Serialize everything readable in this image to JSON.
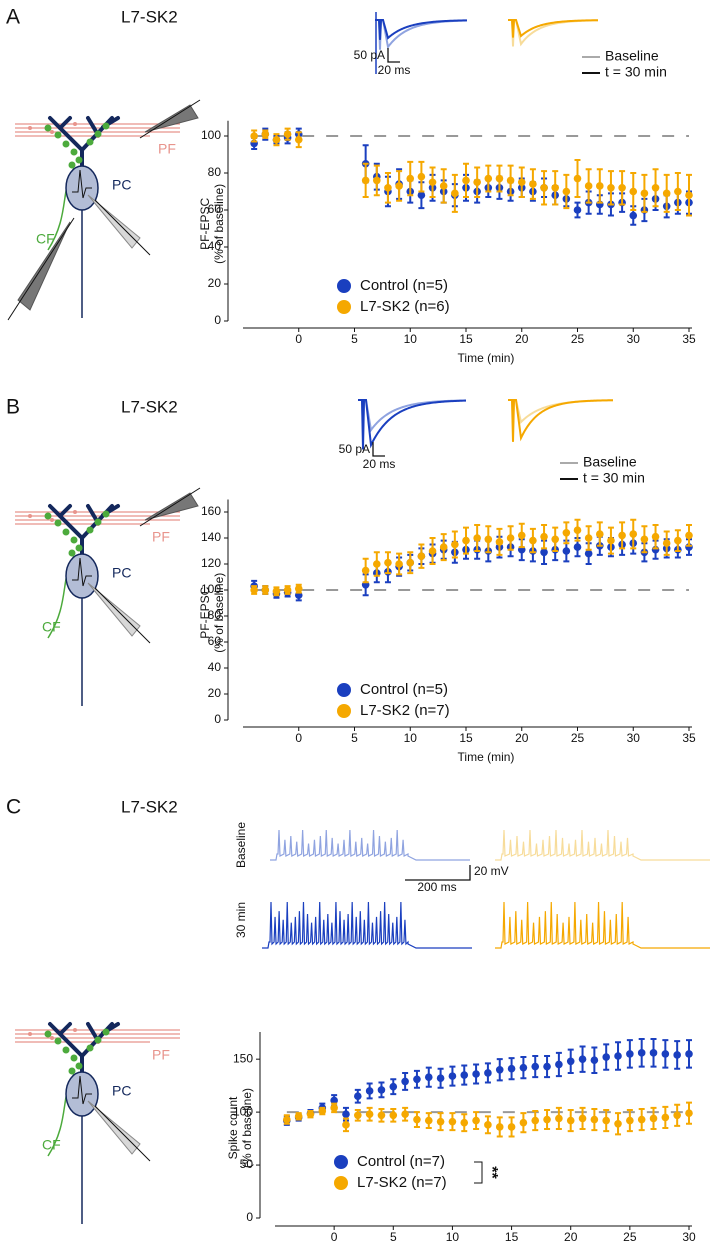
{
  "chart_data": [
    {
      "type": "scatter",
      "panel_label": "A",
      "title": "L7-SK2",
      "schematic_labels": [
        "PF",
        "PC",
        "CF"
      ],
      "scale_bars": [
        "50 pA",
        "20 ms"
      ],
      "trace_legend": [
        "Baseline",
        "t = 30 min"
      ],
      "xlabel": "Time (min)",
      "ylabel": "PF-EPSC",
      "ylabel2": "(% of baseline)",
      "reference_line": 100,
      "x": [
        -4,
        -3,
        -2,
        -1,
        0,
        6,
        7,
        8,
        9,
        10,
        11,
        12,
        13,
        14,
        15,
        16,
        17,
        18,
        19,
        20,
        21,
        22,
        23,
        24,
        25,
        26,
        27,
        28,
        29,
        30,
        31,
        32,
        33,
        34,
        35
      ],
      "series": [
        {
          "name": "Control (n=5)",
          "color": "#1a3fbf",
          "values": [
            96,
            101,
            98,
            99,
            101,
            85,
            78,
            70,
            74,
            70,
            68,
            72,
            70,
            68,
            72,
            70,
            72,
            72,
            70,
            72,
            70,
            72,
            68,
            66,
            60,
            64,
            63,
            63,
            64,
            57,
            60,
            66,
            62,
            64,
            64
          ],
          "errors": [
            3,
            3,
            2,
            3,
            3,
            10,
            7,
            8,
            8,
            6,
            7,
            7,
            6,
            6,
            7,
            6,
            5,
            6,
            5,
            5,
            5,
            5,
            5,
            4,
            4,
            6,
            5,
            6,
            5,
            5,
            6,
            6,
            6,
            6,
            6
          ]
        },
        {
          "name": "L7-SK2 (n=6)",
          "color": "#f5a800",
          "values": [
            100,
            101,
            98,
            101,
            98,
            76,
            76,
            72,
            73,
            77,
            78,
            75,
            73,
            69,
            76,
            75,
            77,
            77,
            76,
            75,
            74,
            72,
            72,
            70,
            77,
            73,
            73,
            72,
            72,
            70,
            69,
            72,
            69,
            70,
            68
          ],
          "errors": [
            3,
            2,
            3,
            3,
            4,
            9,
            8,
            8,
            8,
            9,
            8,
            8,
            9,
            10,
            9,
            8,
            7,
            7,
            8,
            8,
            8,
            9,
            9,
            9,
            10,
            9,
            9,
            9,
            9,
            10,
            10,
            10,
            10,
            10,
            11
          ]
        }
      ],
      "xlim": [
        -5,
        35
      ],
      "ylim": [
        0,
        105
      ],
      "xticks": [
        0,
        5,
        10,
        15,
        20,
        25,
        30,
        35
      ],
      "yticks": [
        0,
        20,
        40,
        60,
        80,
        100
      ]
    },
    {
      "type": "scatter",
      "panel_label": "B",
      "title": "L7-SK2",
      "schematic_labels": [
        "PF",
        "PC",
        "CF"
      ],
      "scale_bars": [
        "50 pA",
        "20 ms"
      ],
      "trace_legend": [
        "Baseline",
        "t = 30 min"
      ],
      "xlabel": "Time (min)",
      "ylabel": "PF-EPSC",
      "ylabel2": "(% of baseline)",
      "reference_line": 100,
      "x": [
        -4,
        -3,
        -2,
        -1,
        0,
        6,
        7,
        8,
        9,
        10,
        11,
        12,
        13,
        14,
        15,
        16,
        17,
        18,
        19,
        20,
        21,
        22,
        23,
        24,
        25,
        26,
        27,
        28,
        29,
        30,
        31,
        32,
        33,
        34,
        35
      ],
      "series": [
        {
          "name": "Control (n=5)",
          "color": "#1a3fbf",
          "values": [
            103,
            100,
            97,
            98,
            96,
            104,
            113,
            114,
            118,
            121,
            126,
            128,
            131,
            129,
            131,
            131,
            130,
            133,
            133,
            131,
            130,
            129,
            131,
            130,
            133,
            128,
            134,
            133,
            135,
            136,
            129,
            131,
            132,
            131,
            133
          ],
          "errors": [
            4,
            3,
            3,
            3,
            4,
            8,
            7,
            8,
            7,
            6,
            6,
            7,
            7,
            8,
            7,
            7,
            8,
            8,
            7,
            8,
            8,
            9,
            8,
            8,
            7,
            8,
            7,
            7,
            8,
            8,
            7,
            7,
            7,
            6,
            6
          ]
        },
        {
          "name": "L7-SK2 (n=7)",
          "color": "#f5a800",
          "values": [
            100,
            100,
            99,
            100,
            101,
            115,
            120,
            121,
            120,
            121,
            126,
            130,
            133,
            135,
            138,
            140,
            139,
            137,
            140,
            142,
            138,
            141,
            139,
            144,
            146,
            140,
            143,
            138,
            142,
            143,
            139,
            141,
            136,
            138,
            142
          ],
          "errors": [
            3,
            3,
            3,
            3,
            3,
            9,
            9,
            8,
            8,
            8,
            9,
            10,
            10,
            10,
            10,
            10,
            10,
            10,
            9,
            9,
            9,
            9,
            9,
            8,
            8,
            9,
            9,
            10,
            10,
            11,
            10,
            9,
            9,
            8,
            8
          ]
        }
      ],
      "xlim": [
        -5,
        35
      ],
      "ylim": [
        0,
        165
      ],
      "xticks": [
        0,
        5,
        10,
        15,
        20,
        25,
        30,
        35
      ],
      "yticks": [
        0,
        20,
        40,
        60,
        80,
        100,
        120,
        140,
        160
      ]
    },
    {
      "type": "scatter",
      "panel_label": "C",
      "title": "L7-SK2",
      "schematic_labels": [
        "PF",
        "PC",
        "CF"
      ],
      "scale_bars": [
        "20 mV",
        "200 ms"
      ],
      "trace_rows": [
        "Baseline",
        "30 min"
      ],
      "xlabel": "Time (min)",
      "ylabel": "Spike count",
      "ylabel2": "(% of baseline)",
      "reference_line": 100,
      "annotation": "**",
      "x": [
        -4,
        -3,
        -2,
        -1,
        0,
        1,
        2,
        3,
        4,
        5,
        6,
        7,
        8,
        9,
        10,
        11,
        12,
        13,
        14,
        15,
        16,
        17,
        18,
        19,
        20,
        21,
        22,
        23,
        24,
        25,
        26,
        27,
        28,
        29,
        30
      ],
      "series": [
        {
          "name": "Control (n=7)",
          "color": "#1a3fbf",
          "values": [
            92,
            95,
            99,
            104,
            111,
            98,
            115,
            120,
            121,
            124,
            129,
            131,
            133,
            132,
            134,
            135,
            136,
            137,
            140,
            141,
            142,
            143,
            143,
            145,
            148,
            150,
            149,
            152,
            153,
            155,
            156,
            156,
            155,
            154,
            155
          ],
          "errors": [
            4,
            3,
            3,
            4,
            5,
            6,
            6,
            7,
            7,
            7,
            8,
            8,
            9,
            9,
            9,
            9,
            9,
            9,
            10,
            10,
            10,
            10,
            10,
            11,
            11,
            12,
            12,
            12,
            13,
            13,
            13,
            13,
            13,
            13,
            13
          ]
        },
        {
          "name": "L7-SK2 (n=7)",
          "color": "#f5a800",
          "values": [
            93,
            96,
            98,
            101,
            104,
            88,
            97,
            98,
            97,
            97,
            98,
            93,
            92,
            91,
            91,
            90,
            92,
            88,
            86,
            86,
            90,
            92,
            93,
            94,
            92,
            94,
            93,
            92,
            89,
            92,
            93,
            94,
            95,
            97,
            99
          ],
          "errors": [
            4,
            3,
            3,
            3,
            4,
            6,
            5,
            6,
            6,
            6,
            6,
            7,
            7,
            8,
            8,
            8,
            8,
            8,
            9,
            9,
            9,
            9,
            9,
            10,
            10,
            10,
            10,
            10,
            10,
            10,
            10,
            10,
            10,
            10,
            10
          ]
        }
      ],
      "xlim": [
        -5,
        30
      ],
      "ylim": [
        0,
        170
      ],
      "xticks": [
        0,
        5,
        10,
        15,
        20,
        25,
        30
      ],
      "yticks": [
        0,
        50,
        100,
        150
      ]
    }
  ]
}
